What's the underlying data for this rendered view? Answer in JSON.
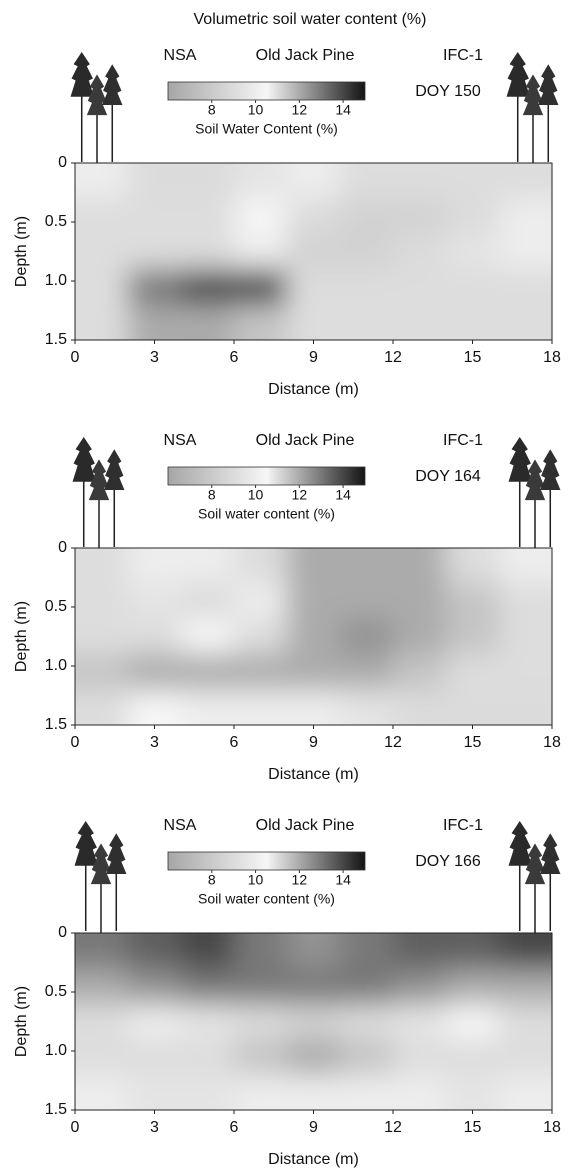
{
  "chart_data": [
    {
      "type": "heatmap",
      "title": "Volumetric soil water content (%)",
      "site": "NSA",
      "stand": "Old Jack Pine",
      "campaign": "IFC-1",
      "day": "DOY 150",
      "colorbar_label": "Soil Water Content (%)",
      "clim": [
        6,
        15
      ],
      "cbar_ticks": [
        8,
        10,
        12,
        14
      ],
      "colorscale": [
        "#a6a6a6",
        "#f6f6f6",
        "#141414"
      ],
      "xlabel": "Distance (m)",
      "ylabel": "Depth (m)",
      "xlim": [
        0,
        18
      ],
      "xticks": [
        0,
        3,
        6,
        9,
        12,
        15,
        18
      ],
      "ylim": [
        0,
        1.5
      ],
      "invert_y": true,
      "yticks": [
        0,
        0.5,
        {
          "value": 1,
          "label": "1.0"
        },
        1.5
      ],
      "x": [
        1,
        3,
        5,
        7,
        9,
        11,
        13,
        15,
        17
      ],
      "y": [
        0.15,
        0.45,
        0.75,
        1.05,
        1.35
      ],
      "values": [
        [
          10,
          9,
          9,
          9.5,
          10,
          11,
          11,
          11,
          11
        ],
        [
          11,
          11,
          11,
          10.5,
          9,
          8.5,
          8.5,
          9,
          10
        ],
        [
          11,
          11,
          11,
          10,
          8.5,
          8.5,
          9,
          9.5,
          10
        ],
        [
          11,
          13,
          14,
          14,
          11,
          11,
          11,
          11,
          11
        ],
        [
          11,
          12,
          12,
          11.5,
          11,
          11,
          11,
          11,
          11
        ]
      ]
    },
    {
      "type": "heatmap",
      "site": "NSA",
      "stand": "Old Jack Pine",
      "campaign": "IFC-1",
      "day": "DOY 164",
      "colorbar_label": "Soil water content (%)",
      "clim": [
        6,
        15
      ],
      "cbar_ticks": [
        8,
        10,
        12,
        14
      ],
      "colorscale": [
        "#a6a6a6",
        "#f6f6f6",
        "#141414"
      ],
      "xlabel": "Distance (m)",
      "ylabel": "Depth (m)",
      "xlim": [
        0,
        18
      ],
      "xticks": [
        0,
        3,
        6,
        9,
        12,
        15,
        18
      ],
      "ylim": [
        0,
        1.5
      ],
      "invert_y": true,
      "yticks": [
        0,
        0.5,
        {
          "value": 1,
          "label": "1.0"
        },
        1.5
      ],
      "x": [
        1,
        3,
        5,
        7,
        9,
        11,
        13,
        15,
        17
      ],
      "y": [
        0.15,
        0.45,
        0.75,
        1.05,
        1.35
      ],
      "values": [
        [
          11,
          10,
          10,
          11,
          12,
          12,
          12,
          11,
          10
        ],
        [
          11,
          9.5,
          9,
          10,
          12,
          12,
          12,
          11.5,
          11
        ],
        [
          11,
          11,
          10.5,
          11,
          12,
          12.5,
          12,
          11.5,
          11
        ],
        [
          11.5,
          12,
          12,
          12,
          12,
          12,
          11.5,
          11,
          11
        ],
        [
          11,
          10.5,
          10,
          10,
          10,
          9.5,
          9,
          9,
          9
        ]
      ]
    },
    {
      "type": "heatmap",
      "site": "NSA",
      "stand": "Old Jack Pine",
      "campaign": "IFC-1",
      "day": "DOY 166",
      "colorbar_label": "Soil water content (%)",
      "clim": [
        6,
        15
      ],
      "cbar_ticks": [
        8,
        10,
        12,
        14
      ],
      "colorscale": [
        "#a6a6a6",
        "#f6f6f6",
        "#141414"
      ],
      "xlabel": "Distance (m)",
      "ylabel": "Depth (m)",
      "xlim": [
        0,
        18
      ],
      "xticks": [
        0,
        3,
        6,
        9,
        12,
        15,
        18
      ],
      "ylim": [
        0,
        1.5
      ],
      "invert_y": true,
      "yticks": [
        0,
        0.5,
        {
          "value": 1,
          "label": "1.0"
        },
        1.5
      ],
      "x": [
        1,
        3,
        5,
        7,
        9,
        11,
        13,
        15,
        17
      ],
      "y": [
        0.15,
        0.45,
        0.75,
        1.05,
        1.35
      ],
      "values": [
        [
          13,
          13.5,
          14,
          13,
          12.5,
          13,
          13.5,
          13.5,
          14
        ],
        [
          12,
          12.5,
          13,
          13,
          13,
          13,
          12.5,
          12,
          12
        ],
        [
          11,
          10,
          9.5,
          9,
          8.5,
          9,
          9.5,
          10.5,
          11
        ],
        [
          11,
          11,
          11,
          11.5,
          12,
          11.5,
          11,
          11,
          11
        ],
        [
          10,
          9.5,
          9.5,
          10,
          10,
          10,
          10,
          9.5,
          10
        ]
      ]
    }
  ]
}
